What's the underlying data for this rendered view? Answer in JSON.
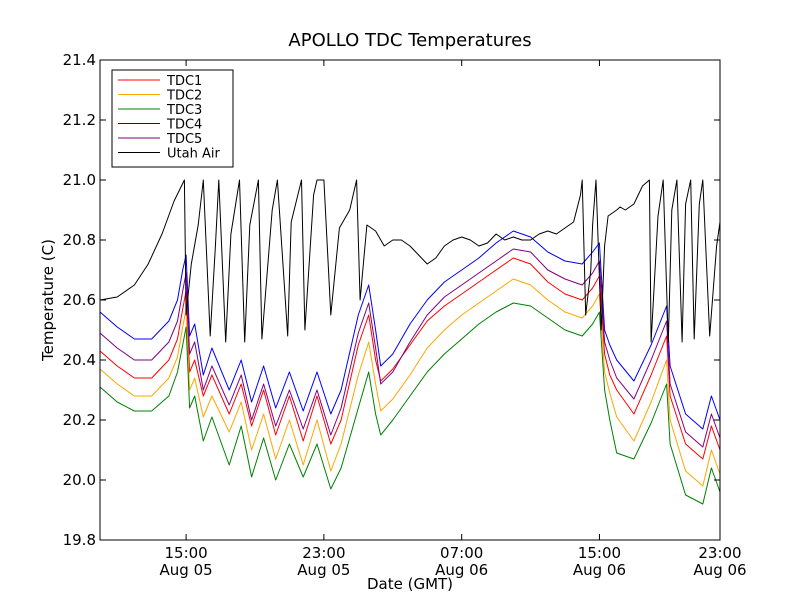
{
  "chart_data": {
    "type": "line",
    "title": "APOLLO TDC Temperatures",
    "xlabel": "Date (GMT)",
    "ylabel": "Temperature (C)",
    "xlim_hours": [
      10.0,
      46.0
    ],
    "ylim": [
      19.8,
      21.4
    ],
    "grid": false,
    "legend_position": "top-left",
    "x_ticks": [
      {
        "hour": 15,
        "line1": "15:00",
        "line2": "Aug 05"
      },
      {
        "hour": 23,
        "line1": "23:00",
        "line2": "Aug 05"
      },
      {
        "hour": 31,
        "line1": "07:00",
        "line2": "Aug 06"
      },
      {
        "hour": 39,
        "line1": "15:00",
        "line2": "Aug 06"
      },
      {
        "hour": 47,
        "line1": "23:00",
        "line2": "Aug 06"
      }
    ],
    "y_ticks": [
      "19.8",
      "20.0",
      "20.2",
      "20.4",
      "20.6",
      "20.8",
      "21.0",
      "21.2",
      "21.4"
    ],
    "x_unit_note": "hours since Aug 05 00:00 GMT",
    "series": [
      {
        "name": "TDC1",
        "color": "#ff0000",
        "x": [
          10.0,
          11.0,
          12.0,
          13.0,
          14.0,
          14.5,
          14.8,
          15.0,
          15.2,
          15.5,
          16.0,
          16.5,
          17.5,
          18.2,
          18.8,
          19.5,
          20.2,
          21.0,
          21.8,
          22.6,
          23.4,
          24.0,
          25.0,
          25.6,
          26.0,
          26.3,
          27.0,
          28.0,
          29.0,
          30.0,
          31.0,
          32.0,
          33.0,
          34.0,
          35.0,
          36.0,
          37.0,
          38.0,
          38.6,
          39.0,
          39.3,
          39.6,
          40.0,
          41.0,
          42.0,
          42.9,
          43.1,
          44.0,
          45.0,
          45.5,
          46.0
        ],
        "y": [
          20.43,
          20.38,
          20.34,
          20.34,
          20.4,
          20.47,
          20.57,
          20.63,
          20.36,
          20.4,
          20.28,
          20.35,
          20.22,
          20.32,
          20.18,
          20.3,
          20.15,
          20.28,
          20.13,
          20.28,
          20.12,
          20.2,
          20.45,
          20.55,
          20.4,
          20.33,
          20.37,
          20.45,
          20.53,
          20.58,
          20.62,
          20.66,
          20.7,
          20.74,
          20.72,
          20.66,
          20.62,
          20.6,
          20.64,
          20.68,
          20.42,
          20.35,
          20.3,
          20.22,
          20.35,
          20.48,
          20.28,
          20.12,
          20.07,
          20.18,
          20.1
        ]
      },
      {
        "name": "TDC2",
        "color": "#ffa500",
        "x": [
          10.0,
          11.0,
          12.0,
          13.0,
          14.0,
          14.5,
          14.8,
          15.0,
          15.2,
          15.5,
          16.0,
          16.5,
          17.5,
          18.2,
          18.8,
          19.5,
          20.2,
          21.0,
          21.8,
          22.6,
          23.4,
          24.0,
          25.0,
          25.6,
          26.0,
          26.3,
          27.0,
          28.0,
          29.0,
          30.0,
          31.0,
          32.0,
          33.0,
          34.0,
          35.0,
          36.0,
          37.0,
          38.0,
          38.6,
          39.0,
          39.3,
          39.6,
          40.0,
          41.0,
          42.0,
          42.9,
          43.1,
          44.0,
          45.0,
          45.5,
          46.0
        ],
        "y": [
          20.37,
          20.32,
          20.28,
          20.28,
          20.34,
          20.41,
          20.51,
          20.57,
          20.3,
          20.34,
          20.21,
          20.28,
          20.16,
          20.26,
          20.1,
          20.22,
          20.07,
          20.2,
          20.05,
          20.2,
          20.03,
          20.12,
          20.35,
          20.46,
          20.32,
          20.23,
          20.27,
          20.35,
          20.44,
          20.5,
          20.55,
          20.59,
          20.63,
          20.67,
          20.65,
          20.6,
          20.56,
          20.54,
          20.58,
          20.62,
          20.36,
          20.29,
          20.21,
          20.13,
          20.26,
          20.4,
          20.2,
          20.03,
          19.98,
          20.1,
          20.02
        ]
      },
      {
        "name": "TDC3",
        "color": "#008000",
        "x": [
          10.0,
          11.0,
          12.0,
          13.0,
          14.0,
          14.5,
          14.8,
          15.0,
          15.2,
          15.5,
          16.0,
          16.5,
          17.5,
          18.2,
          18.8,
          19.5,
          20.2,
          21.0,
          21.8,
          22.6,
          23.4,
          24.0,
          25.0,
          25.6,
          26.0,
          26.3,
          27.0,
          28.0,
          29.0,
          30.0,
          31.0,
          32.0,
          33.0,
          34.0,
          35.0,
          36.0,
          37.0,
          38.0,
          38.6,
          39.0,
          39.3,
          39.6,
          40.0,
          41.0,
          42.0,
          42.9,
          43.1,
          44.0,
          45.0,
          45.5,
          46.0
        ],
        "y": [
          20.31,
          20.26,
          20.23,
          20.23,
          20.28,
          20.36,
          20.45,
          20.51,
          20.24,
          20.28,
          20.13,
          20.21,
          20.05,
          20.18,
          20.01,
          20.14,
          20.0,
          20.12,
          20.01,
          20.12,
          19.97,
          20.04,
          20.24,
          20.36,
          20.22,
          20.15,
          20.2,
          20.28,
          20.36,
          20.42,
          20.47,
          20.52,
          20.56,
          20.59,
          20.58,
          20.54,
          20.5,
          20.48,
          20.52,
          20.56,
          20.3,
          20.2,
          20.09,
          20.07,
          20.19,
          20.32,
          20.12,
          19.95,
          19.92,
          20.04,
          19.96
        ]
      },
      {
        "name": "TDC4",
        "color": "#0000ff",
        "x": [
          10.0,
          11.0,
          12.0,
          13.0,
          14.0,
          14.5,
          14.8,
          15.0,
          15.2,
          15.5,
          16.0,
          16.5,
          17.5,
          18.2,
          18.8,
          19.5,
          20.2,
          21.0,
          21.8,
          22.6,
          23.4,
          24.0,
          25.0,
          25.6,
          26.0,
          26.3,
          27.0,
          28.0,
          29.0,
          30.0,
          31.0,
          32.0,
          33.0,
          34.0,
          35.0,
          36.0,
          37.0,
          38.0,
          38.6,
          39.0,
          39.3,
          39.6,
          40.0,
          41.0,
          42.0,
          42.9,
          43.1,
          44.0,
          45.0,
          45.5,
          46.0
        ],
        "y": [
          20.56,
          20.51,
          20.47,
          20.47,
          20.53,
          20.6,
          20.7,
          20.75,
          20.48,
          20.52,
          20.35,
          20.44,
          20.3,
          20.4,
          20.26,
          20.38,
          20.24,
          20.36,
          20.23,
          20.36,
          20.22,
          20.3,
          20.55,
          20.65,
          20.5,
          20.38,
          20.42,
          20.52,
          20.6,
          20.66,
          20.7,
          20.74,
          20.79,
          20.83,
          20.81,
          20.76,
          20.73,
          20.72,
          20.76,
          20.79,
          20.5,
          20.45,
          20.4,
          20.33,
          20.45,
          20.58,
          20.38,
          20.22,
          20.17,
          20.28,
          20.2
        ]
      },
      {
        "name": "TDC5",
        "color": "#800080",
        "x": [
          10.0,
          11.0,
          12.0,
          13.0,
          14.0,
          14.5,
          14.8,
          15.0,
          15.2,
          15.5,
          16.0,
          16.5,
          17.5,
          18.2,
          18.8,
          19.5,
          20.2,
          21.0,
          21.8,
          22.6,
          23.4,
          24.0,
          25.0,
          25.6,
          26.0,
          26.3,
          27.0,
          28.0,
          29.0,
          30.0,
          31.0,
          32.0,
          33.0,
          34.0,
          35.0,
          36.0,
          37.0,
          38.0,
          38.6,
          39.0,
          39.3,
          39.6,
          40.0,
          41.0,
          42.0,
          42.9,
          43.1,
          44.0,
          45.0,
          45.5,
          46.0
        ],
        "y": [
          20.49,
          20.44,
          20.4,
          20.4,
          20.46,
          20.53,
          20.63,
          20.69,
          20.42,
          20.46,
          20.3,
          20.38,
          20.25,
          20.35,
          20.2,
          20.32,
          20.18,
          20.3,
          20.17,
          20.3,
          20.15,
          20.24,
          20.49,
          20.59,
          20.44,
          20.32,
          20.36,
          20.46,
          20.55,
          20.61,
          20.65,
          20.69,
          20.73,
          20.77,
          20.76,
          20.7,
          20.67,
          20.65,
          20.69,
          20.73,
          20.46,
          20.4,
          20.34,
          20.27,
          20.4,
          20.53,
          20.32,
          20.16,
          20.11,
          20.22,
          20.14
        ]
      },
      {
        "name": "Utah Air",
        "color": "#000000",
        "x": [
          10.0,
          11.0,
          12.0,
          12.8,
          13.6,
          14.3,
          14.9,
          15.0,
          15.3,
          15.7,
          16.0,
          16.4,
          16.7,
          16.9,
          17.3,
          17.6,
          18.1,
          18.4,
          18.7,
          19.2,
          19.4,
          20.0,
          20.3,
          20.9,
          21.1,
          21.7,
          21.9,
          22.4,
          22.6,
          23.0,
          23.4,
          23.9,
          24.5,
          24.9,
          25.1,
          25.5,
          26.0,
          26.5,
          27.0,
          27.5,
          28.0,
          28.5,
          29.0,
          29.5,
          30.0,
          30.5,
          31.0,
          31.5,
          32.0,
          32.5,
          33.0,
          33.5,
          34.0,
          34.5,
          35.0,
          35.5,
          36.0,
          36.5,
          37.0,
          37.5,
          37.9,
          38.0,
          38.2,
          38.5,
          38.6,
          38.8,
          39.1,
          39.3,
          39.5,
          40.0,
          40.2,
          40.5,
          41.0,
          41.5,
          41.9,
          42.0,
          42.4,
          42.7,
          43.0,
          43.2,
          43.5,
          43.8,
          44.0,
          44.3,
          44.5,
          44.8,
          45.0,
          45.4,
          45.8,
          46.0
        ],
        "y": [
          20.6,
          20.61,
          20.65,
          20.72,
          20.82,
          20.93,
          21.0,
          20.55,
          20.72,
          20.85,
          21.0,
          20.48,
          20.78,
          21.0,
          20.46,
          20.82,
          21.0,
          20.46,
          20.85,
          21.0,
          20.47,
          20.9,
          21.0,
          20.48,
          20.86,
          21.0,
          20.5,
          20.95,
          21.0,
          21.0,
          20.55,
          20.84,
          20.9,
          21.0,
          20.6,
          20.85,
          20.83,
          20.78,
          20.8,
          20.8,
          20.78,
          20.75,
          20.72,
          20.74,
          20.78,
          20.8,
          20.81,
          20.8,
          20.78,
          20.79,
          20.82,
          20.8,
          20.81,
          20.8,
          20.8,
          20.82,
          20.83,
          20.82,
          20.84,
          20.86,
          20.95,
          21.0,
          20.55,
          20.7,
          20.85,
          21.0,
          20.5,
          20.78,
          20.88,
          20.9,
          20.91,
          20.9,
          20.92,
          20.98,
          21.0,
          20.46,
          20.88,
          21.0,
          20.46,
          20.9,
          21.0,
          20.46,
          20.92,
          21.0,
          20.47,
          20.92,
          21.0,
          20.48,
          20.78,
          20.86
        ]
      }
    ]
  }
}
